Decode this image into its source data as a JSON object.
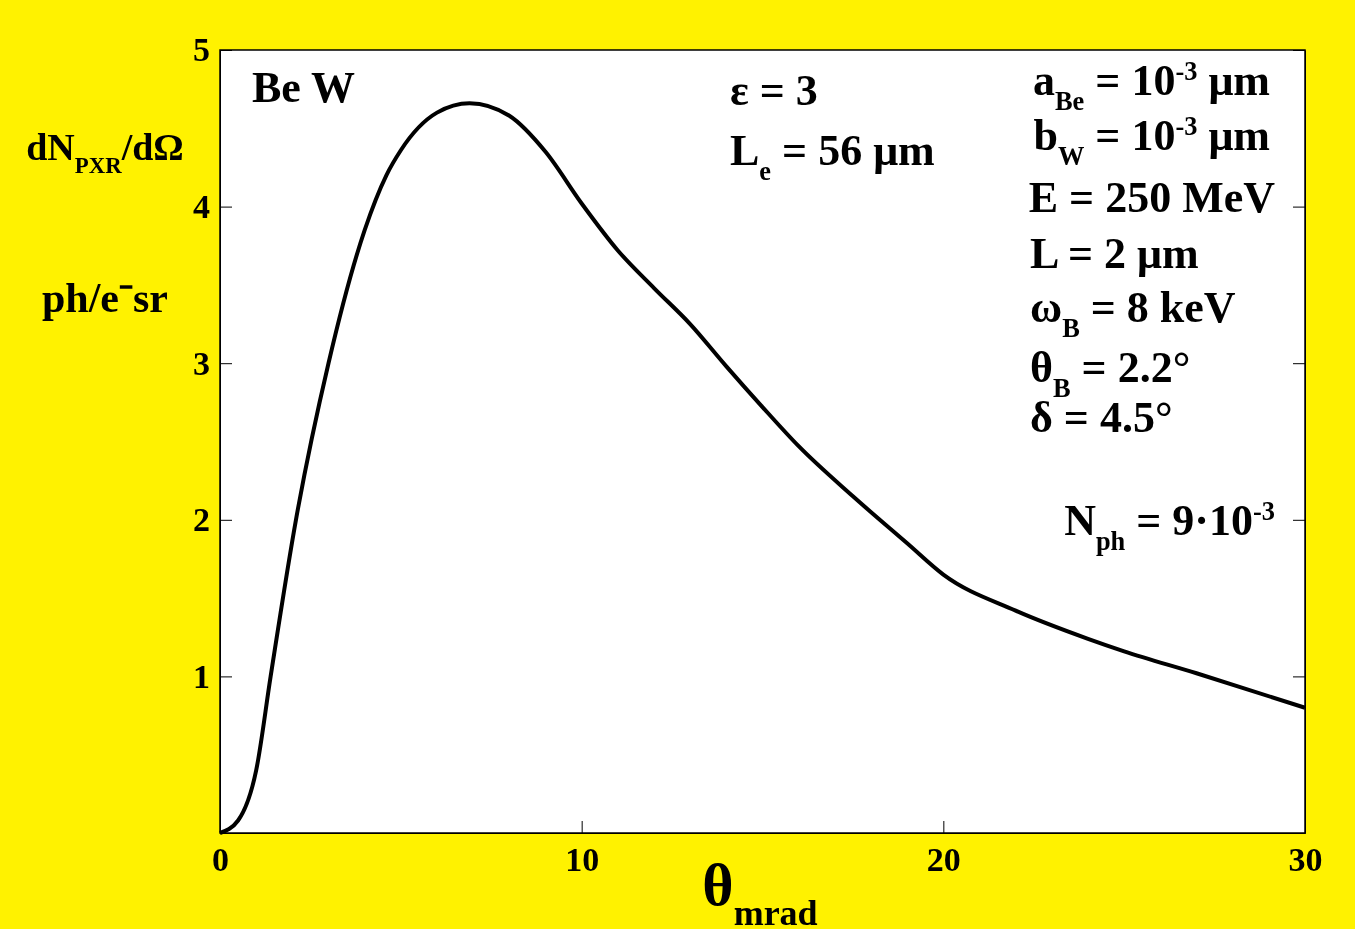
{
  "chart_data": {
    "type": "line",
    "xlabel": "θ$_{mrad}$",
    "ylabel": "dN$_{PXR}$/dΩ ph/e⁻sr",
    "x": [
      0,
      0.5,
      1,
      1.4,
      2.1,
      3,
      4,
      4.6,
      5,
      6,
      6.9,
      8,
      9,
      10,
      11,
      12,
      13,
      14,
      15,
      16,
      17.5,
      19,
      20,
      22,
      24,
      25,
      27,
      30
    ],
    "series": [
      {
        "color": "#000000",
        "values": [
          0,
          0.08,
          0.4,
          1,
          2,
          3,
          3.85,
          4.2,
          4.36,
          4.6,
          4.66,
          4.58,
          4.35,
          4.02,
          3.72,
          3.48,
          3.25,
          2.98,
          2.72,
          2.47,
          2.15,
          1.85,
          1.65,
          1.42,
          1.24,
          1.16,
          1.02,
          0.8
        ]
      }
    ],
    "xlim": [
      0,
      30
    ],
    "ylim": [
      0,
      5
    ],
    "xticks": [
      0,
      10,
      20,
      30
    ],
    "yticks": [
      1,
      2,
      3,
      4,
      5
    ],
    "grid": false,
    "marker": "none",
    "line_style": "solid",
    "annotations": [
      "Be  W",
      "ε = 3",
      "L$_{e}$ = 56 μm",
      "a$_{Be}$ = 10$^{-3}$ μm",
      "b$_{W}$ = 10$^{-3}$ μm",
      "E = 250 MeV",
      "L = 2 μm",
      "ω$_{B}$ = 8 keV",
      "θ$_{B}$ = 2.2°",
      "δ = 4.5°",
      "N$_{ph}$ = 9·10$^{-3}$"
    ]
  }
}
